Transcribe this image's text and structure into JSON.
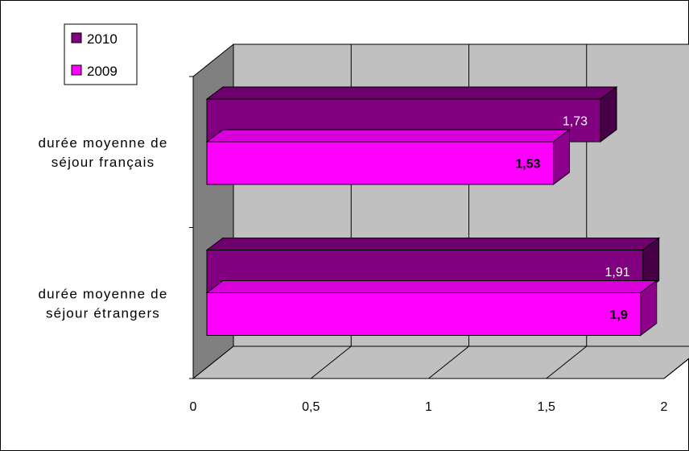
{
  "chart_data": {
    "type": "bar",
    "orientation": "horizontal",
    "style": "3d",
    "categories": [
      [
        "durée moyenne de",
        "séjour français"
      ],
      [
        "durée moyenne de",
        "séjour étrangers"
      ]
    ],
    "series": [
      {
        "name": "2010",
        "color": "#800080",
        "values": [
          1.73,
          1.91
        ],
        "labels": [
          "1,73",
          "1,91"
        ],
        "label_color": "#ffffff",
        "label_bold": false
      },
      {
        "name": "2009",
        "color": "#ff00ff",
        "values": [
          1.53,
          1.9
        ],
        "labels": [
          "1,53",
          "1,9"
        ],
        "label_color": "#000000",
        "label_bold": true
      }
    ],
    "x_ticks": [
      "0",
      "0,5",
      "1",
      "1,5",
      "2"
    ],
    "xlim": [
      0,
      2
    ],
    "grid": true,
    "legend_position": "top-left",
    "wall_color": "#c0c0c0",
    "side_wall_color": "#808080"
  }
}
